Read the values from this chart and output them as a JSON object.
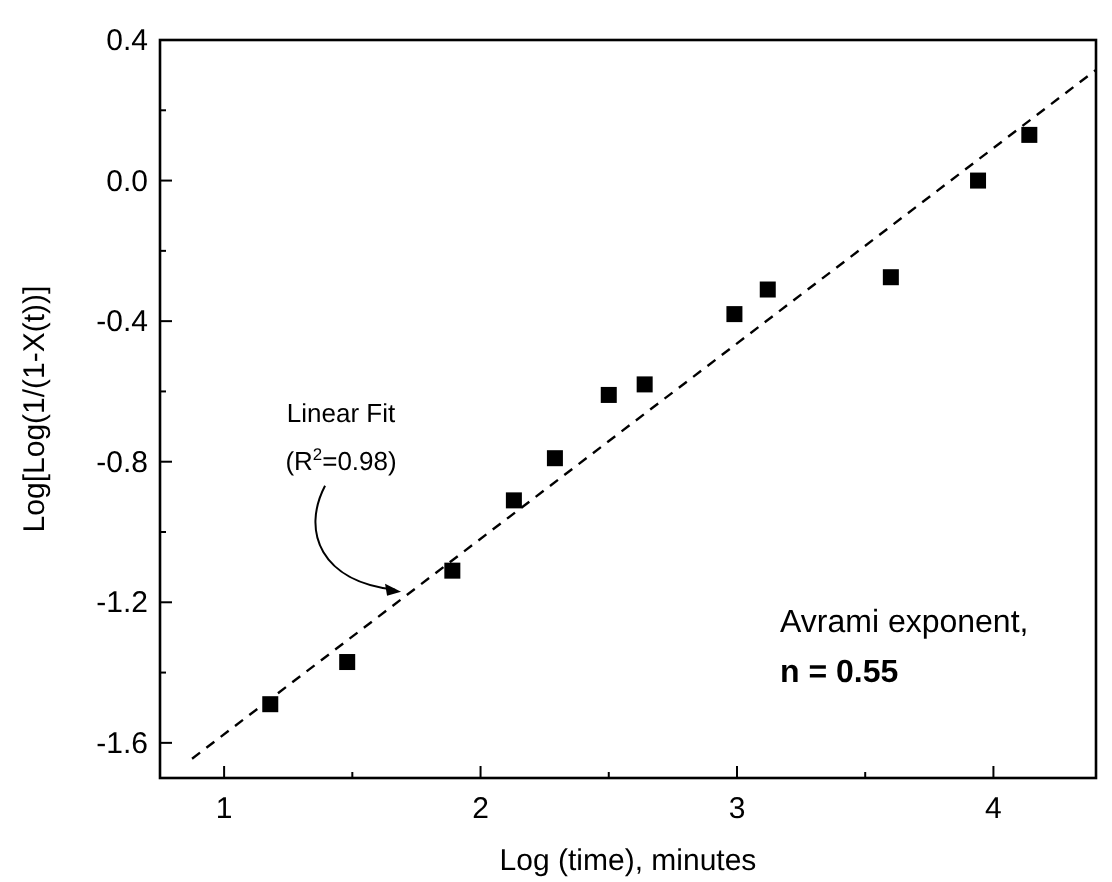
{
  "chart_data": {
    "type": "scatter",
    "xlabel": "Log (time), minutes",
    "ylabel": "Log[Log(1/(1-X(t))]",
    "xlim": [
      0.75,
      4.4
    ],
    "ylim": [
      -1.7,
      0.4
    ],
    "xticks": [
      {
        "value": 1,
        "label": "1"
      },
      {
        "value": 1.5,
        "label": null
      },
      {
        "value": 2,
        "label": "2"
      },
      {
        "value": 2.5,
        "label": null
      },
      {
        "value": 3,
        "label": "3"
      },
      {
        "value": 3.5,
        "label": null
      },
      {
        "value": 4,
        "label": "4"
      }
    ],
    "yticks": [
      {
        "value": -1.6,
        "label": "-1.6"
      },
      {
        "value": -1.4,
        "label": null
      },
      {
        "value": -1.2,
        "label": "-1.2"
      },
      {
        "value": -1.0,
        "label": null
      },
      {
        "value": -0.8,
        "label": "-0.8"
      },
      {
        "value": -0.6,
        "label": null
      },
      {
        "value": -0.4,
        "label": "-0.4"
      },
      {
        "value": -0.2,
        "label": null
      },
      {
        "value": 0,
        "label": "0.0"
      },
      {
        "value": 0.2,
        "label": null
      },
      {
        "value": 0.4,
        "label": "0.4"
      }
    ],
    "grid": false,
    "series": [
      {
        "marker": "square",
        "color": "#000000",
        "x": [
          1.18,
          1.48,
          1.89,
          2.13,
          2.29,
          2.5,
          2.64,
          2.99,
          3.12,
          3.6,
          3.94,
          4.14
        ],
        "values": [
          -1.49,
          -1.37,
          -1.11,
          -0.91,
          -0.79,
          -0.61,
          -0.58,
          -0.38,
          -0.31,
          -0.275,
          0.0,
          0.13
        ]
      },
      {
        "type": "line",
        "marker": "none",
        "color": "#000000",
        "line_style": "dashed",
        "x": [
          0.875,
          4.4
        ],
        "values": [
          -1.645,
          0.315
        ]
      }
    ],
    "annotations": [
      {
        "text": "Linear Fit (R$^{2}$=0.98)",
        "x": 1.69,
        "y": -1.17
      },
      "Avrami exponent,",
      "n = 0.55"
    ]
  }
}
